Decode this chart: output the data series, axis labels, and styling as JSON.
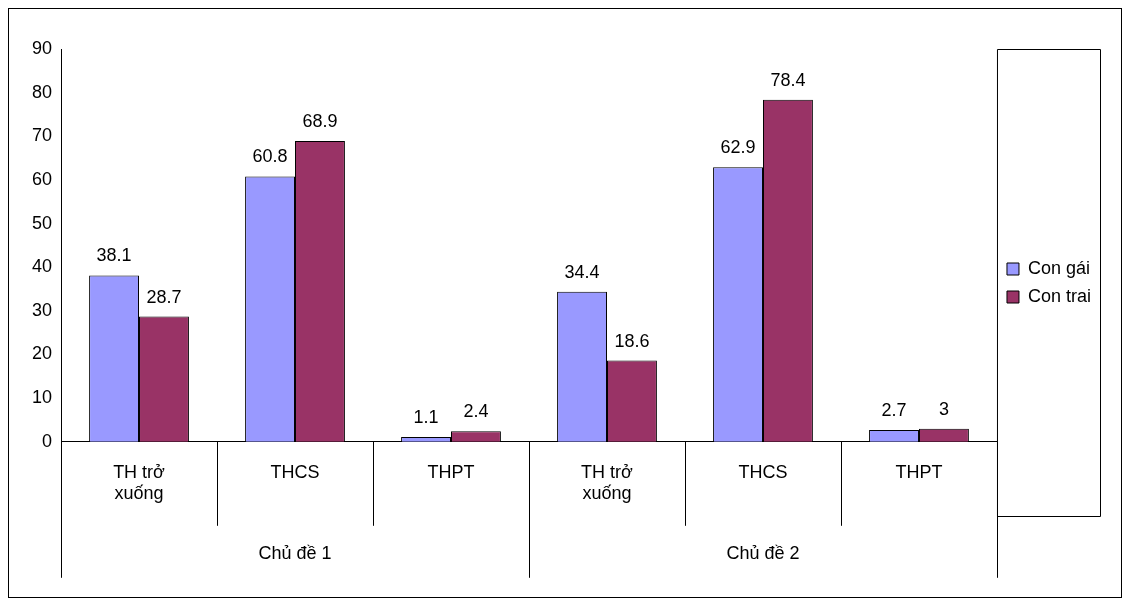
{
  "chart_data": {
    "type": "bar",
    "categories": [
      "TH trở xuống",
      "THCS",
      "THPT",
      "TH trở xuống",
      "THCS",
      "THPT"
    ],
    "series": [
      {
        "name": "Con gái",
        "color": "#9999ff",
        "values": [
          38.1,
          60.8,
          1.1,
          34.4,
          62.9,
          2.7
        ]
      },
      {
        "name": "Con trai",
        "color": "#993366",
        "values": [
          28.7,
          68.9,
          2.4,
          18.6,
          78.4,
          3
        ]
      }
    ],
    "ylim": [
      0,
      90
    ],
    "yticks": [
      0,
      10,
      20,
      30,
      40,
      50,
      60,
      70,
      80,
      90
    ],
    "data_labels": true,
    "legend": "right",
    "annotations": [
      "Chủ đề 1",
      "Chủ đề 2"
    ]
  }
}
